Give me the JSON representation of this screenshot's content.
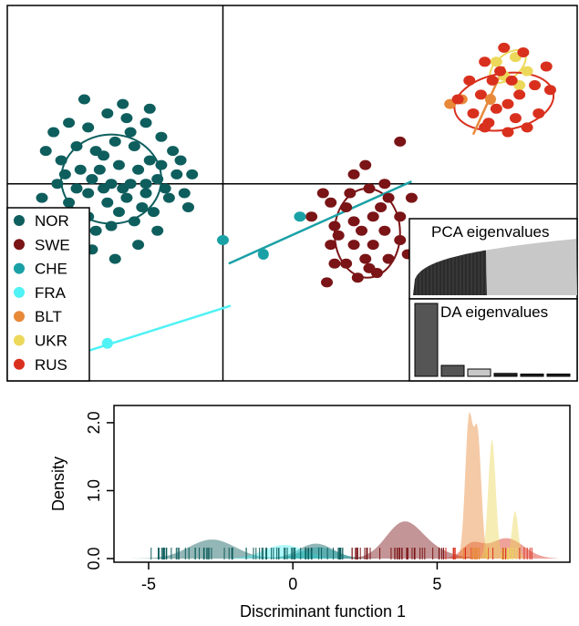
{
  "colors": {
    "NOR": "#0f5e5e",
    "SWE": "#7a1416",
    "CHE": "#1aa1a6",
    "FRA": "#4ff2f5",
    "BLT": "#e8893a",
    "UKR": "#ecd85a",
    "RUS": "#d9301e"
  },
  "chart_data": [
    {
      "type": "scatter",
      "subtype": "dapc-scatterplot",
      "xlim": [
        -5.6,
        9.2
      ],
      "ylim": [
        -4.2,
        3.8
      ],
      "axes_lines": {
        "x": 0,
        "y": 0
      },
      "legend": {
        "position": "bottom-left",
        "entries": [
          "NOR",
          "SWE",
          "CHE",
          "FRA",
          "BLT",
          "UKR",
          "RUS"
        ]
      },
      "groups": [
        {
          "name": "NOR",
          "center": [
            -2.9,
            0.1
          ],
          "ellipse": {
            "rx": 1.3,
            "ry": 0.95,
            "angle": 0
          },
          "points": [
            [
              -4.4,
              1.1
            ],
            [
              -4.0,
              1.3
            ],
            [
              -3.5,
              1.2
            ],
            [
              -3.0,
              1.5
            ],
            [
              -2.5,
              1.4
            ],
            [
              -2.0,
              1.3
            ],
            [
              -1.6,
              1.0
            ],
            [
              -1.3,
              0.7
            ],
            [
              -1.2,
              0.2
            ],
            [
              -1.4,
              -0.3
            ],
            [
              -1.8,
              -0.6
            ],
            [
              -2.3,
              -0.8
            ],
            [
              -2.9,
              -0.9
            ],
            [
              -3.5,
              -0.7
            ],
            [
              -4.0,
              -0.4
            ],
            [
              -4.3,
              0.0
            ],
            [
              -4.2,
              0.5
            ],
            [
              -3.8,
              0.8
            ],
            [
              -3.3,
              0.7
            ],
            [
              -2.8,
              0.9
            ],
            [
              -2.3,
              0.8
            ],
            [
              -1.9,
              0.5
            ],
            [
              -1.7,
              0.1
            ],
            [
              -2.0,
              -0.2
            ],
            [
              -2.5,
              -0.3
            ],
            [
              -3.0,
              -0.4
            ],
            [
              -3.5,
              -0.2
            ],
            [
              -3.7,
              0.3
            ],
            [
              -3.2,
              0.3
            ],
            [
              -2.7,
              0.4
            ],
            [
              -2.2,
              0.3
            ],
            [
              -2.4,
              0.0
            ],
            [
              -2.9,
              0.0
            ],
            [
              -3.4,
              0.1
            ],
            [
              -3.1,
              -0.1
            ],
            [
              -2.6,
              -0.1
            ],
            [
              -2.0,
              0.0
            ],
            [
              -1.5,
              -0.1
            ],
            [
              -1.0,
              -0.2
            ],
            [
              -0.8,
              0.2
            ],
            [
              -4.6,
              0.7
            ],
            [
              -3.9,
              -0.9
            ],
            [
              -3.4,
              -1.4
            ],
            [
              -2.8,
              -1.6
            ],
            [
              -2.2,
              -1.3
            ],
            [
              -1.7,
              -1.0
            ],
            [
              -0.9,
              -0.5
            ],
            [
              -4.7,
              -0.3
            ],
            [
              -3.6,
              1.8
            ],
            [
              -2.6,
              1.7
            ],
            [
              -1.9,
              1.6
            ],
            [
              -4.1,
              0.2
            ],
            [
              -3.3,
              -1.0
            ],
            [
              -2.1,
              -0.5
            ],
            [
              -1.1,
              0.5
            ],
            [
              -2.4,
              1.1
            ],
            [
              -3.1,
              0.6
            ],
            [
              -2.7,
              -0.6
            ],
            [
              -3.8,
              -0.1
            ],
            [
              -1.6,
              0.4
            ]
          ]
        },
        {
          "name": "SWE",
          "center": [
            3.75,
            -1.05
          ],
          "ellipse": {
            "rx": 0.85,
            "ry": 0.95,
            "angle": 0
          },
          "points": [
            [
              2.3,
              -0.7
            ],
            [
              2.8,
              -0.4
            ],
            [
              3.3,
              -0.2
            ],
            [
              3.8,
              -0.1
            ],
            [
              4.3,
              -0.3
            ],
            [
              4.6,
              -0.7
            ],
            [
              4.6,
              -1.2
            ],
            [
              4.3,
              -1.6
            ],
            [
              3.8,
              -1.8
            ],
            [
              3.2,
              -1.7
            ],
            [
              2.8,
              -1.3
            ],
            [
              2.9,
              -0.9
            ],
            [
              3.4,
              -0.8
            ],
            [
              3.9,
              -0.7
            ],
            [
              4.2,
              -1.0
            ],
            [
              3.9,
              -1.3
            ],
            [
              3.4,
              -1.3
            ],
            [
              3.0,
              -1.1
            ],
            [
              3.6,
              -1.0
            ],
            [
              4.0,
              -1.9
            ],
            [
              3.5,
              -2.0
            ],
            [
              2.9,
              -1.7
            ],
            [
              2.7,
              -2.1
            ],
            [
              4.8,
              -1.5
            ],
            [
              4.9,
              -0.3
            ],
            [
              4.2,
              0.0
            ],
            [
              3.4,
              0.2
            ],
            [
              2.6,
              -0.2
            ],
            [
              3.7,
              0.4
            ],
            [
              4.6,
              0.9
            ],
            [
              3.7,
              -1.6
            ],
            [
              3.2,
              -0.5
            ],
            [
              4.1,
              -0.5
            ]
          ]
        },
        {
          "name": "CHE",
          "center": [
            1.05,
            -1.5
          ],
          "line": [
            [
              0.15,
              -1.7
            ],
            [
              4.9,
              0.05
            ]
          ],
          "points": [
            [
              2.0,
              -0.7
            ],
            [
              0.0,
              -1.2
            ]
          ]
        },
        {
          "name": "FRA",
          "center": [
            -3.0,
            -3.4
          ],
          "line": [
            [
              -5.2,
              -4.0
            ],
            [
              0.2,
              -2.6
            ]
          ],
          "points": []
        },
        {
          "name": "BLT",
          "center": [
            6.95,
            1.8
          ],
          "line": [
            [
              6.5,
              1.05
            ],
            [
              7.3,
              2.5
            ]
          ],
          "points": [
            [
              5.9,
              1.7
            ],
            [
              6.2,
              1.8
            ]
          ]
        },
        {
          "name": "UKR",
          "center": [
            7.4,
            2.5
          ],
          "ellipse": {
            "rx": 0.55,
            "ry": 0.25,
            "angle": 40
          },
          "points": [
            [
              7.1,
              2.6
            ],
            [
              7.3,
              2.3
            ],
            [
              7.6,
              2.7
            ],
            [
              7.9,
              2.4
            ],
            [
              7.3,
              2.9
            ],
            [
              7.7,
              2.1
            ]
          ]
        },
        {
          "name": "RUS",
          "center": [
            7.3,
            1.75
          ],
          "ellipse": {
            "rx": 1.3,
            "ry": 0.6,
            "angle": 10
          },
          "points": [
            [
              6.1,
              1.8
            ],
            [
              6.4,
              2.2
            ],
            [
              6.8,
              2.6
            ],
            [
              7.3,
              2.9
            ],
            [
              7.8,
              2.8
            ],
            [
              8.4,
              2.5
            ],
            [
              8.5,
              2.0
            ],
            [
              8.2,
              1.5
            ],
            [
              7.9,
              1.2
            ],
            [
              7.4,
              1.1
            ],
            [
              6.9,
              1.3
            ],
            [
              6.5,
              1.5
            ],
            [
              6.7,
              1.9
            ],
            [
              7.0,
              2.2
            ],
            [
              7.4,
              1.7
            ],
            [
              7.7,
              1.9
            ],
            [
              7.1,
              1.6
            ],
            [
              7.6,
              1.4
            ],
            [
              8.1,
              2.1
            ],
            [
              7.2,
              2.4
            ],
            [
              6.8,
              1.2
            ],
            [
              7.5,
              2.2
            ]
          ]
        }
      ],
      "insets": [
        {
          "title": "PCA eigenvalues",
          "type": "area-bars",
          "retained_fraction": 0.45
        },
        {
          "title": "DA eigenvalues",
          "type": "bar",
          "values": [
            1.0,
            0.15,
            0.1,
            0.04,
            0.03,
            0.02
          ]
        }
      ]
    },
    {
      "type": "area",
      "subtype": "density",
      "xlabel": "Discriminant function 1",
      "ylabel": "Density",
      "xlim": [
        -6.2,
        9.6
      ],
      "ylim": [
        0,
        2.2
      ],
      "xticks": [
        -5,
        0,
        5
      ],
      "xtick_labels": [
        "-5",
        "0",
        "5"
      ],
      "yticks": [
        0.0,
        1.0,
        2.0
      ],
      "ytick_labels": [
        "0.0",
        "1.0",
        "2.0"
      ],
      "series": [
        {
          "name": "NOR",
          "bumps": [
            {
              "mu": -2.8,
              "sigma": 0.8,
              "h": 0.28
            },
            {
              "mu": 0.8,
              "sigma": 0.6,
              "h": 0.22
            }
          ]
        },
        {
          "name": "FRA",
          "bumps": [
            {
              "mu": -0.3,
              "sigma": 0.7,
              "h": 0.2
            }
          ]
        },
        {
          "name": "CHE",
          "bumps": [
            {
              "mu": 0.9,
              "sigma": 0.6,
              "h": 0.17
            }
          ]
        },
        {
          "name": "SWE",
          "bumps": [
            {
              "mu": 3.8,
              "sigma": 0.6,
              "h": 0.44
            },
            {
              "mu": 4.5,
              "sigma": 0.8,
              "h": 0.15
            }
          ]
        },
        {
          "name": "RUS",
          "bumps": [
            {
              "mu": 6.2,
              "sigma": 0.35,
              "h": 0.2
            },
            {
              "mu": 7.4,
              "sigma": 0.6,
              "h": 0.3
            }
          ]
        },
        {
          "name": "BLT",
          "bumps": [
            {
              "mu": 6.1,
              "sigma": 0.13,
              "h": 2.0
            },
            {
              "mu": 6.4,
              "sigma": 0.13,
              "h": 1.8
            }
          ]
        },
        {
          "name": "UKR",
          "bumps": [
            {
              "mu": 6.9,
              "sigma": 0.13,
              "h": 1.75
            },
            {
              "mu": 7.7,
              "sigma": 0.11,
              "h": 0.7
            }
          ]
        }
      ],
      "rugs": [
        {
          "name": "NOR",
          "from": -5.0,
          "to": 1.8,
          "n": 70
        },
        {
          "name": "SWE",
          "from": 2.0,
          "to": 5.4,
          "n": 35
        },
        {
          "name": "RUS",
          "from": 5.2,
          "to": 8.4,
          "n": 20
        },
        {
          "name": "BLT",
          "from": 5.9,
          "to": 6.6,
          "n": 8
        },
        {
          "name": "UKR",
          "from": 6.7,
          "to": 8.0,
          "n": 8
        }
      ]
    }
  ]
}
